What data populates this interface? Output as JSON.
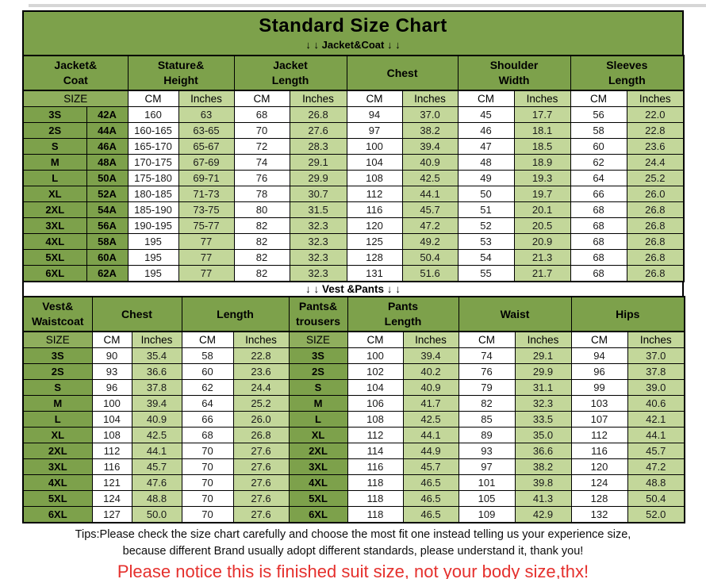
{
  "page": {
    "title": "Standard Size Chart",
    "subtitle": "↓ ↓  Jacket&Coat ↓ ↓",
    "divider": "↓ ↓  Vest &Pants ↓ ↓"
  },
  "colors": {
    "header_green": "#7da14b",
    "size_row_green": "#8fae5d",
    "light_green": "#c3d79a",
    "notice_red": "#e5302d",
    "border_black": "#000000"
  },
  "jacket_table": {
    "groups": [
      {
        "lines": [
          "Jacket&",
          "Coat"
        ],
        "cols": 2
      },
      {
        "lines": [
          "Stature&",
          "Height"
        ],
        "cols": 2
      },
      {
        "lines": [
          "Jacket",
          "Length"
        ],
        "cols": 2
      },
      {
        "lines": [
          "Chest"
        ],
        "cols": 2
      },
      {
        "lines": [
          "Shoulder",
          "Width"
        ],
        "cols": 2
      },
      {
        "lines": [
          "Sleeves",
          "Length"
        ],
        "cols": 2
      }
    ],
    "subheader": [
      {
        "label": "SIZE",
        "span": 2,
        "kind": "size"
      },
      {
        "label": "CM",
        "span": 1,
        "kind": "cm"
      },
      {
        "label": "Inches",
        "span": 1,
        "kind": "in"
      },
      {
        "label": "CM",
        "span": 1,
        "kind": "cm"
      },
      {
        "label": "Inches",
        "span": 1,
        "kind": "in"
      },
      {
        "label": "CM",
        "span": 1,
        "kind": "cm"
      },
      {
        "label": "Inches",
        "span": 1,
        "kind": "in"
      },
      {
        "label": "CM",
        "span": 1,
        "kind": "cm"
      },
      {
        "label": "Inches",
        "span": 1,
        "kind": "in"
      },
      {
        "label": "CM",
        "span": 1,
        "kind": "cm"
      },
      {
        "label": "Inches",
        "span": 1,
        "kind": "in"
      }
    ],
    "kinds": [
      "size",
      "size",
      "cm",
      "in",
      "cm",
      "in",
      "cm",
      "in",
      "cm",
      "in",
      "cm",
      "in"
    ],
    "rows": [
      [
        "3S",
        "42A",
        "160",
        "63",
        "68",
        "26.8",
        "94",
        "37.0",
        "45",
        "17.7",
        "56",
        "22.0"
      ],
      [
        "2S",
        "44A",
        "160-165",
        "63-65",
        "70",
        "27.6",
        "97",
        "38.2",
        "46",
        "18.1",
        "58",
        "22.8"
      ],
      [
        "S",
        "46A",
        "165-170",
        "65-67",
        "72",
        "28.3",
        "100",
        "39.4",
        "47",
        "18.5",
        "60",
        "23.6"
      ],
      [
        "M",
        "48A",
        "170-175",
        "67-69",
        "74",
        "29.1",
        "104",
        "40.9",
        "48",
        "18.9",
        "62",
        "24.4"
      ],
      [
        "L",
        "50A",
        "175-180",
        "69-71",
        "76",
        "29.9",
        "108",
        "42.5",
        "49",
        "19.3",
        "64",
        "25.2"
      ],
      [
        "XL",
        "52A",
        "180-185",
        "71-73",
        "78",
        "30.7",
        "112",
        "44.1",
        "50",
        "19.7",
        "66",
        "26.0"
      ],
      [
        "2XL",
        "54A",
        "185-190",
        "73-75",
        "80",
        "31.5",
        "116",
        "45.7",
        "51",
        "20.1",
        "68",
        "26.8"
      ],
      [
        "3XL",
        "56A",
        "190-195",
        "75-77",
        "82",
        "32.3",
        "120",
        "47.2",
        "52",
        "20.5",
        "68",
        "26.8"
      ],
      [
        "4XL",
        "58A",
        "195",
        "77",
        "82",
        "32.3",
        "125",
        "49.2",
        "53",
        "20.9",
        "68",
        "26.8"
      ],
      [
        "5XL",
        "60A",
        "195",
        "77",
        "82",
        "32.3",
        "128",
        "50.4",
        "54",
        "21.3",
        "68",
        "26.8"
      ],
      [
        "6XL",
        "62A",
        "195",
        "77",
        "82",
        "32.3",
        "131",
        "51.6",
        "55",
        "21.7",
        "68",
        "26.8"
      ]
    ]
  },
  "vest_pants_table": {
    "groups": [
      {
        "lines": [
          "Vest&",
          "Waistcoat"
        ],
        "cols": 1
      },
      {
        "lines": [
          "Chest"
        ],
        "cols": 2
      },
      {
        "lines": [
          "Length"
        ],
        "cols": 2
      },
      {
        "lines": [
          "Pants&",
          "trousers"
        ],
        "cols": 1
      },
      {
        "lines": [
          "Pants",
          "Length"
        ],
        "cols": 2
      },
      {
        "lines": [
          "Waist"
        ],
        "cols": 2
      },
      {
        "lines": [
          "Hips"
        ],
        "cols": 2
      }
    ],
    "subheader": [
      {
        "label": "SIZE",
        "span": 1,
        "kind": "size"
      },
      {
        "label": "CM",
        "span": 1,
        "kind": "cm"
      },
      {
        "label": "Inches",
        "span": 1,
        "kind": "in"
      },
      {
        "label": "CM",
        "span": 1,
        "kind": "cm"
      },
      {
        "label": "Inches",
        "span": 1,
        "kind": "in"
      },
      {
        "label": "SIZE",
        "span": 1,
        "kind": "size"
      },
      {
        "label": "CM",
        "span": 1,
        "kind": "cm"
      },
      {
        "label": "Inches",
        "span": 1,
        "kind": "in"
      },
      {
        "label": "CM",
        "span": 1,
        "kind": "cm"
      },
      {
        "label": "Inches",
        "span": 1,
        "kind": "in"
      },
      {
        "label": "CM",
        "span": 1,
        "kind": "cm"
      },
      {
        "label": "Inches",
        "span": 1,
        "kind": "in"
      }
    ],
    "kinds": [
      "size",
      "cm",
      "in",
      "cm",
      "in",
      "size",
      "cm",
      "in",
      "cm",
      "in",
      "cm",
      "in"
    ],
    "rows": [
      [
        "3S",
        "90",
        "35.4",
        "58",
        "22.8",
        "3S",
        "100",
        "39.4",
        "74",
        "29.1",
        "94",
        "37.0"
      ],
      [
        "2S",
        "93",
        "36.6",
        "60",
        "23.6",
        "2S",
        "102",
        "40.2",
        "76",
        "29.9",
        "96",
        "37.8"
      ],
      [
        "S",
        "96",
        "37.8",
        "62",
        "24.4",
        "S",
        "104",
        "40.9",
        "79",
        "31.1",
        "99",
        "39.0"
      ],
      [
        "M",
        "100",
        "39.4",
        "64",
        "25.2",
        "M",
        "106",
        "41.7",
        "82",
        "32.3",
        "103",
        "40.6"
      ],
      [
        "L",
        "104",
        "40.9",
        "66",
        "26.0",
        "L",
        "108",
        "42.5",
        "85",
        "33.5",
        "107",
        "42.1"
      ],
      [
        "XL",
        "108",
        "42.5",
        "68",
        "26.8",
        "XL",
        "112",
        "44.1",
        "89",
        "35.0",
        "112",
        "44.1"
      ],
      [
        "2XL",
        "112",
        "44.1",
        "70",
        "27.6",
        "2XL",
        "114",
        "44.9",
        "93",
        "36.6",
        "116",
        "45.7"
      ],
      [
        "3XL",
        "116",
        "45.7",
        "70",
        "27.6",
        "3XL",
        "116",
        "45.7",
        "97",
        "38.2",
        "120",
        "47.2"
      ],
      [
        "4XL",
        "121",
        "47.6",
        "70",
        "27.6",
        "4XL",
        "118",
        "46.5",
        "101",
        "39.8",
        "124",
        "48.8"
      ],
      [
        "5XL",
        "124",
        "48.8",
        "70",
        "27.6",
        "5XL",
        "118",
        "46.5",
        "105",
        "41.3",
        "128",
        "50.4"
      ],
      [
        "6XL",
        "127",
        "50.0",
        "70",
        "27.6",
        "6XL",
        "118",
        "46.5",
        "109",
        "42.9",
        "132",
        "52.0"
      ]
    ]
  },
  "footer": {
    "tips_line1": "Tips:Please check the size chart carefully and choose the most fit one instead telling us your experience size,",
    "tips_line2": "because different Brand usually adopt different standards, please understand it, thank you!",
    "notice": "Please notice this is finished suit size, not your body size,thx!"
  }
}
